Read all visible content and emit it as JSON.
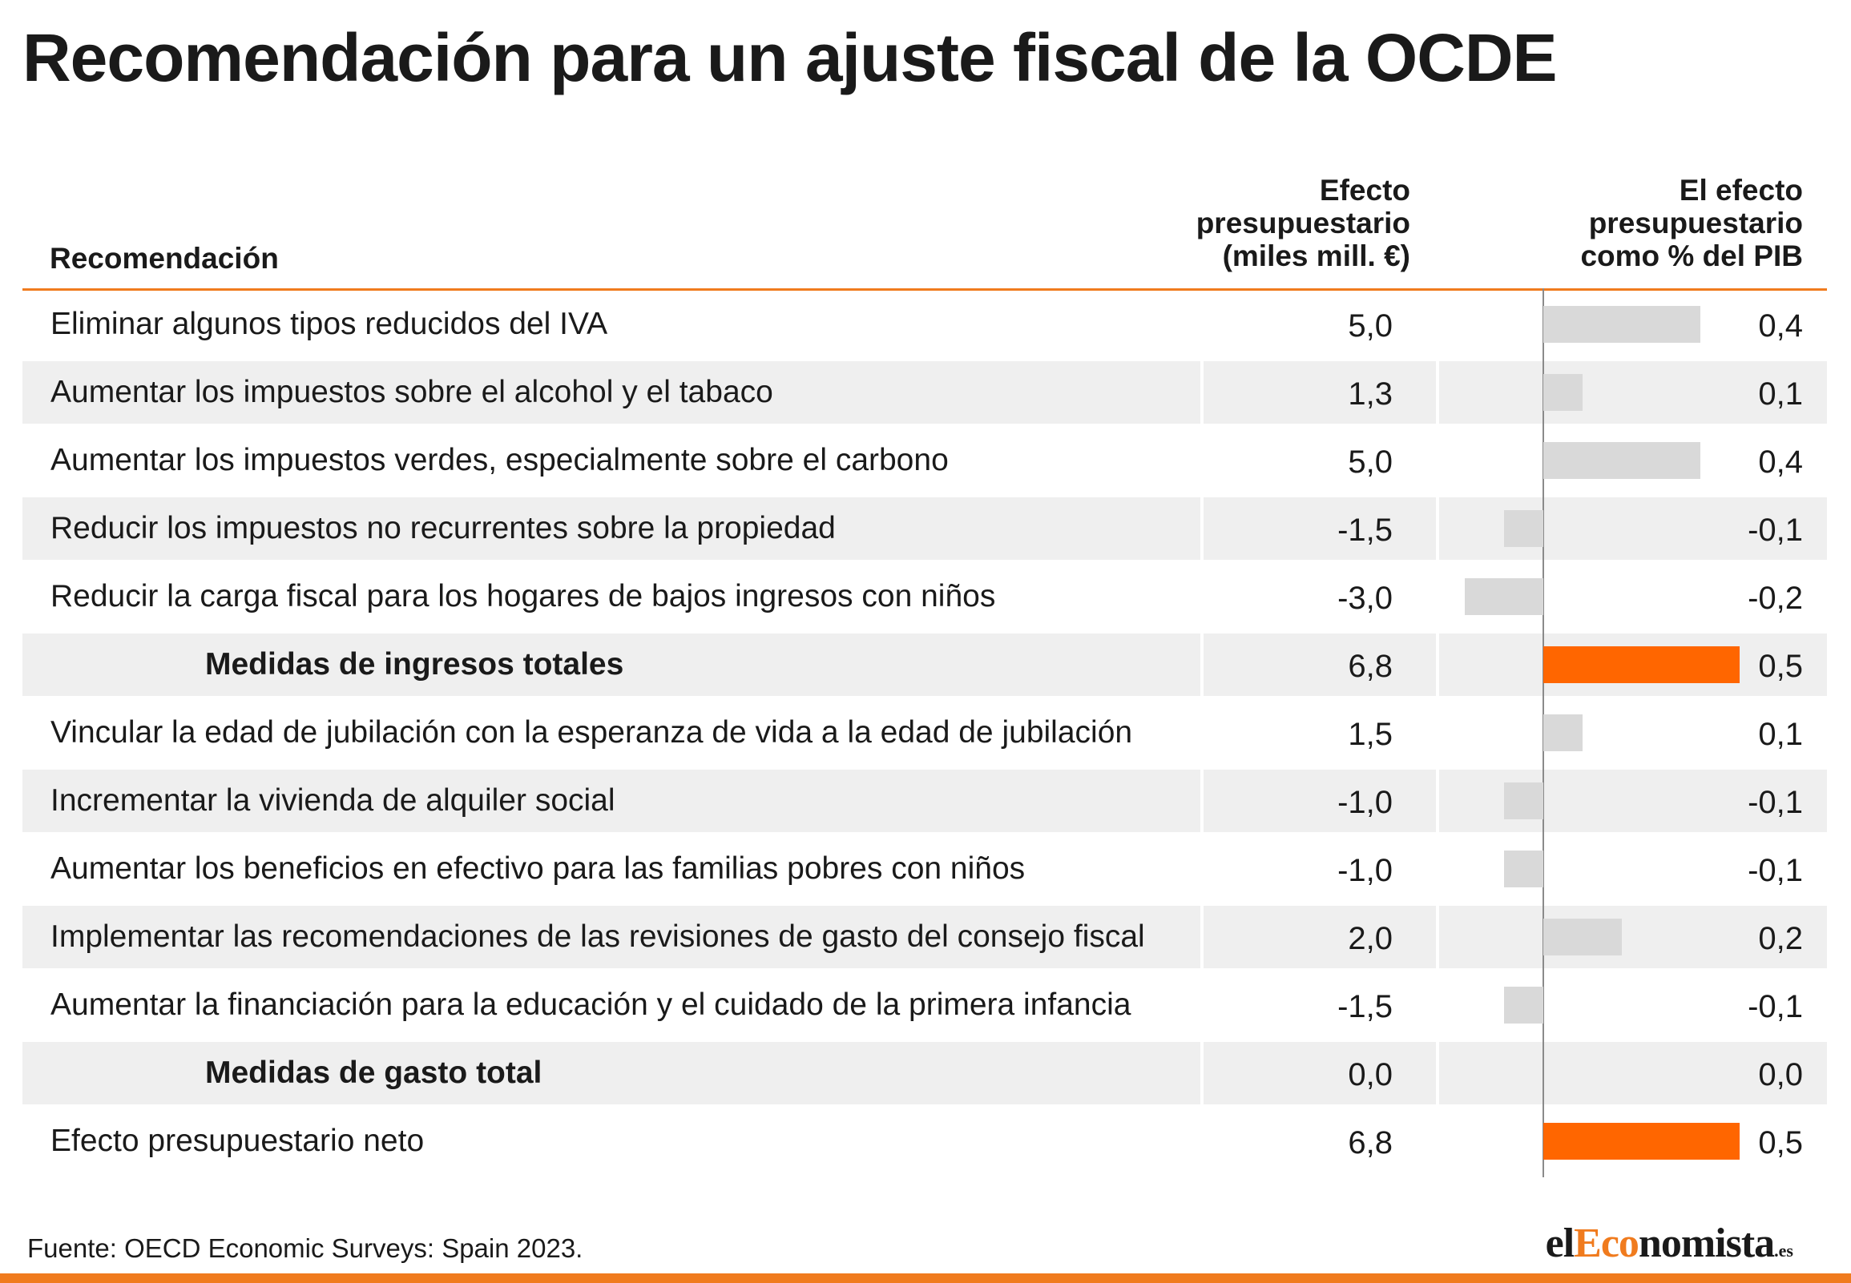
{
  "title": "Recomendación para un ajuste fiscal de la OCDE",
  "headers": {
    "recomendacion": "Recomendación",
    "efecto": [
      "Efecto",
      "presupuestario",
      "(miles mill. €)"
    ],
    "pib": [
      "El efecto",
      "presupuestario",
      "como % del PIB"
    ]
  },
  "colors": {
    "accent": "#f07b1e",
    "bar_gray": "#d9d9d9",
    "bar_orange": "#ff6600",
    "row_shade": "#efefef"
  },
  "chart_data": {
    "type": "table",
    "columns": [
      "Recomendación",
      "Efecto presupuestario (miles mill. €)",
      "El efecto presupuestario como % del PIB"
    ],
    "bar_column": "El efecto presupuestario como % del PIB",
    "bar_range": [
      -0.3,
      0.5
    ],
    "rows": [
      {
        "label": "Eliminar algunos tipos reducidos del IVA",
        "effect": "5,0",
        "pct": "0,4",
        "pct_value": 0.4,
        "total": false
      },
      {
        "label": "Aumentar los impuestos sobre el alcohol y el tabaco",
        "effect": "1,3",
        "pct": "0,1",
        "pct_value": 0.1,
        "total": false
      },
      {
        "label": "Aumentar los impuestos verdes, especialmente sobre el carbono",
        "effect": "5,0",
        "pct": "0,4",
        "pct_value": 0.4,
        "total": false
      },
      {
        "label": "Reducir los impuestos no recurrentes sobre la propiedad",
        "effect": "-1,5",
        "pct": "-0,1",
        "pct_value": -0.1,
        "total": false
      },
      {
        "label": "Reducir la carga fiscal para los hogares de bajos ingresos con niños",
        "effect": "-3,0",
        "pct": "-0,2",
        "pct_value": -0.2,
        "total": false
      },
      {
        "label": "Medidas de ingresos totales",
        "effect": "6,8",
        "pct": "0,5",
        "pct_value": 0.5,
        "total": true
      },
      {
        "label": "Vincular la edad de jubilación con la esperanza de vida a la edad de jubilación",
        "effect": "1,5",
        "pct": "0,1",
        "pct_value": 0.1,
        "total": false
      },
      {
        "label": "Incrementar la vivienda de alquiler social",
        "effect": "-1,0",
        "pct": "-0,1",
        "pct_value": -0.1,
        "total": false
      },
      {
        "label": "Aumentar los beneficios en efectivo para las familias pobres con niños",
        "effect": "-1,0",
        "pct": "-0,1",
        "pct_value": -0.1,
        "total": false
      },
      {
        "label": "Implementar las recomendaciones de las revisiones de gasto del consejo fiscal",
        "effect": "2,0",
        "pct": "0,2",
        "pct_value": 0.2,
        "total": false
      },
      {
        "label": "Aumentar la financiación para la educación y el cuidado de la primera infancia",
        "effect": "-1,5",
        "pct": "-0,1",
        "pct_value": -0.1,
        "total": false
      },
      {
        "label": "Medidas de gasto total",
        "effect": "0,0",
        "pct": "0,0",
        "pct_value": 0.0,
        "total": true
      },
      {
        "label": "Efecto presupuestario neto",
        "effect": "6,8",
        "pct": "0,5",
        "pct_value": 0.5,
        "total": false,
        "net": true
      }
    ]
  },
  "source": "Fuente: OECD Economic Surveys: Spain 2023.",
  "logo": {
    "prefix": "el",
    "mid": "Eco",
    "suffix": "nomista",
    "tld": ".es"
  }
}
